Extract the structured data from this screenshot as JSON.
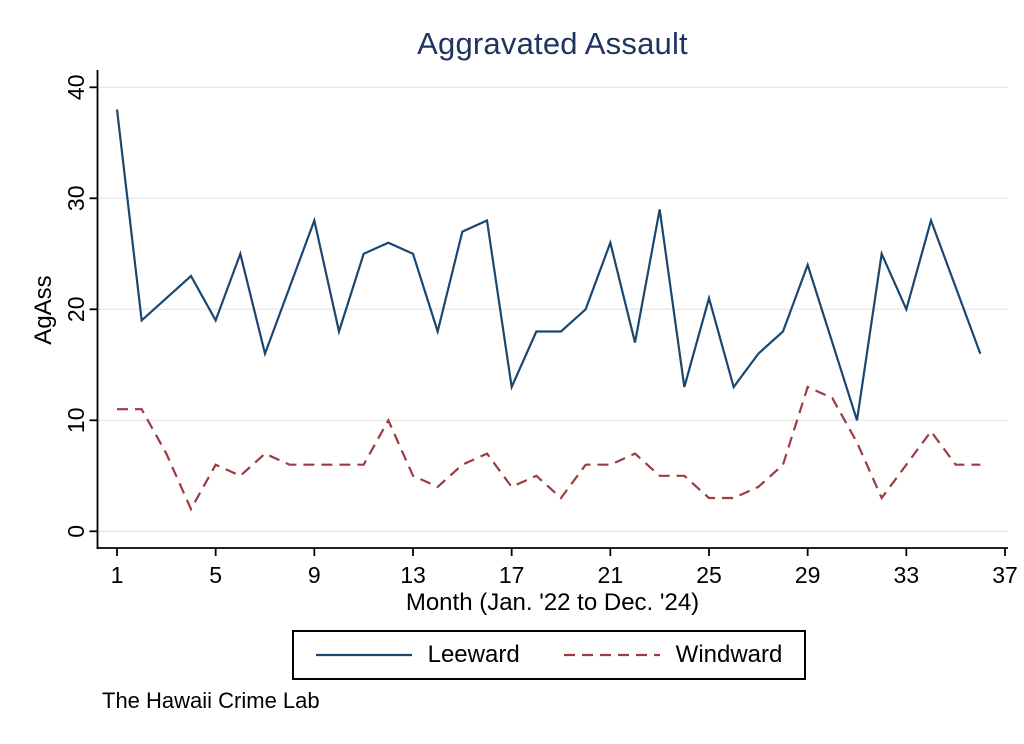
{
  "chart_data": {
    "type": "line",
    "title": "Aggravated Assault",
    "xlabel": "Month (Jan. '22 to Dec. '24)",
    "ylabel": "AgAss",
    "x": [
      1,
      2,
      3,
      4,
      5,
      6,
      7,
      8,
      9,
      10,
      11,
      12,
      13,
      14,
      15,
      16,
      17,
      18,
      19,
      20,
      21,
      22,
      23,
      24,
      25,
      26,
      27,
      28,
      29,
      30,
      31,
      32,
      33,
      34,
      35,
      36
    ],
    "series": [
      {
        "name": "Leeward",
        "style": "solid",
        "color": "#1a476f",
        "values": [
          38,
          19,
          21,
          23,
          19,
          25,
          16,
          22,
          28,
          18,
          25,
          26,
          25,
          18,
          27,
          28,
          13,
          18,
          18,
          20,
          26,
          17,
          29,
          13,
          21,
          13,
          16,
          18,
          24,
          17,
          10,
          25,
          20,
          28,
          22,
          16
        ]
      },
      {
        "name": "Windward",
        "style": "dashed",
        "color": "#9d3b40",
        "values": [
          11,
          11,
          7,
          2,
          6,
          5,
          7,
          6,
          6,
          6,
          6,
          10,
          5,
          4,
          6,
          7,
          4,
          5,
          3,
          6,
          6,
          7,
          5,
          5,
          3,
          3,
          4,
          6,
          13,
          12,
          8,
          3,
          6,
          9,
          6,
          6
        ]
      }
    ],
    "xlim": [
      1,
      37
    ],
    "ylim": [
      0,
      40
    ],
    "xticks": [
      1,
      5,
      9,
      13,
      17,
      21,
      25,
      29,
      33,
      37
    ],
    "yticks": [
      0,
      10,
      20,
      30,
      40
    ],
    "grid": "horizontal",
    "legend_position": "bottom"
  },
  "note": "The Hawaii Crime Lab",
  "colors": {
    "title": "#1f3460",
    "axis": "#000000",
    "grid": "#e9e9e9",
    "tick_label": "#000000"
  }
}
